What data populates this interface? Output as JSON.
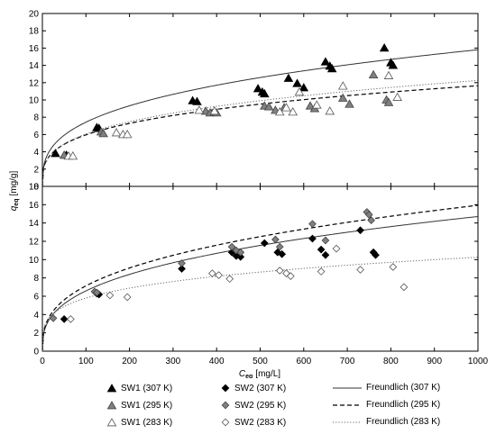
{
  "chart_data": {
    "type": "scatter",
    "x_axis": {
      "label_main": "C",
      "label_sub": "eq",
      "label_unit": "[mg/L]",
      "range": [
        0,
        1000
      ],
      "ticks": [
        "0",
        "100",
        "200",
        "300",
        "400",
        "500",
        "600",
        "700",
        "800",
        "900",
        "1000"
      ]
    },
    "y_axis": {
      "label_main": "q",
      "label_sub": "eq",
      "label_unit": "[mg/g]"
    },
    "panels": [
      {
        "position": "top",
        "ylim": [
          0,
          20
        ],
        "y_ticks": [
          "0",
          "2",
          "4",
          "6",
          "8",
          "10",
          "12",
          "14",
          "16",
          "18",
          "20"
        ],
        "series": [
          {
            "name": "SW1 (307 K)",
            "marker": "triangle",
            "fill": "#000000",
            "points": [
              [
                30,
                3.8
              ],
              [
                55,
                3.6
              ],
              [
                125,
                6.8
              ],
              [
                130,
                6.7
              ],
              [
                345,
                9.9
              ],
              [
                355,
                9.8
              ],
              [
                495,
                11.3
              ],
              [
                505,
                10.9
              ],
              [
                510,
                10.7
              ],
              [
                565,
                12.5
              ],
              [
                585,
                11.9
              ],
              [
                600,
                11.4
              ],
              [
                650,
                14.4
              ],
              [
                660,
                13.9
              ],
              [
                665,
                13.6
              ],
              [
                785,
                16.0
              ],
              [
                800,
                14.3
              ],
              [
                805,
                14.0
              ]
            ]
          },
          {
            "name": "SW1 (295 K)",
            "marker": "triangle",
            "fill": "#808080",
            "points": [
              [
                50,
                3.6
              ],
              [
                135,
                6.3
              ],
              [
                140,
                6.1
              ],
              [
                375,
                8.7
              ],
              [
                385,
                8.5
              ],
              [
                395,
                8.6
              ],
              [
                400,
                8.5
              ],
              [
                510,
                9.3
              ],
              [
                520,
                9.2
              ],
              [
                535,
                8.8
              ],
              [
                555,
                9.1
              ],
              [
                615,
                9.3
              ],
              [
                625,
                9.0
              ],
              [
                690,
                10.2
              ],
              [
                705,
                9.5
              ],
              [
                760,
                12.9
              ],
              [
                790,
                10.0
              ],
              [
                795,
                9.7
              ]
            ]
          },
          {
            "name": "SW1 (283 K)",
            "marker": "triangle",
            "fill": "#ffffff",
            "points": [
              [
                60,
                3.5
              ],
              [
                70,
                3.5
              ],
              [
                170,
                6.2
              ],
              [
                185,
                6.0
              ],
              [
                195,
                6.0
              ],
              [
                360,
                8.8
              ],
              [
                395,
                8.7
              ],
              [
                545,
                8.6
              ],
              [
                560,
                9.1
              ],
              [
                575,
                8.6
              ],
              [
                590,
                10.9
              ],
              [
                630,
                9.4
              ],
              [
                660,
                8.7
              ],
              [
                690,
                11.6
              ],
              [
                795,
                12.8
              ],
              [
                815,
                10.3
              ]
            ]
          }
        ],
        "fits": [
          {
            "name": "Freundlich (307 K)",
            "style": "solid",
            "K": 1.64,
            "n": 0.328
          },
          {
            "name": "Freundlich (295 K)",
            "style": "dashed",
            "K": 1.56,
            "n": 0.291
          },
          {
            "name": "Freundlich (283 K)",
            "style": "dotted",
            "K": 1.48,
            "n": 0.306
          }
        ]
      },
      {
        "position": "bottom",
        "ylim": [
          0,
          18
        ],
        "y_ticks": [
          "0",
          "2",
          "4",
          "6",
          "8",
          "10",
          "12",
          "14",
          "16",
          "18"
        ],
        "series": [
          {
            "name": "SW2 (307 K)",
            "marker": "diamond",
            "fill": "#000000",
            "points": [
              [
                50,
                3.5
              ],
              [
                125,
                6.3
              ],
              [
                130,
                6.2
              ],
              [
                320,
                9.0
              ],
              [
                435,
                10.8
              ],
              [
                445,
                10.4
              ],
              [
                455,
                10.3
              ],
              [
                510,
                11.8
              ],
              [
                540,
                10.8
              ],
              [
                550,
                10.6
              ],
              [
                620,
                12.3
              ],
              [
                640,
                11.1
              ],
              [
                650,
                10.5
              ],
              [
                730,
                13.2
              ],
              [
                760,
                10.8
              ],
              [
                765,
                10.5
              ]
            ]
          },
          {
            "name": "SW2 (295 K)",
            "marker": "diamond",
            "fill": "#808080",
            "points": [
              [
                25,
                3.6
              ],
              [
                120,
                6.5
              ],
              [
                125,
                6.4
              ],
              [
                320,
                9.6
              ],
              [
                435,
                11.4
              ],
              [
                445,
                11.0
              ],
              [
                455,
                10.8
              ],
              [
                535,
                12.2
              ],
              [
                545,
                11.4
              ],
              [
                620,
                13.9
              ],
              [
                650,
                12.1
              ],
              [
                745,
                15.2
              ],
              [
                750,
                14.9
              ],
              [
                755,
                14.3
              ]
            ]
          },
          {
            "name": "SW2 (283 K)",
            "marker": "diamond",
            "fill": "#ffffff",
            "points": [
              [
                65,
                3.5
              ],
              [
                155,
                6.1
              ],
              [
                195,
                5.9
              ],
              [
                390,
                8.5
              ],
              [
                405,
                8.3
              ],
              [
                430,
                7.9
              ],
              [
                545,
                8.8
              ],
              [
                560,
                8.5
              ],
              [
                570,
                8.2
              ],
              [
                640,
                8.7
              ],
              [
                675,
                11.2
              ],
              [
                730,
                8.9
              ],
              [
                805,
                9.2
              ],
              [
                830,
                7.0
              ]
            ]
          }
        ],
        "fits": [
          {
            "name": "Freundlich (307 K)",
            "style": "solid",
            "K": 1.32,
            "n": 0.349
          },
          {
            "name": "Freundlich (295 K)",
            "style": "dashed",
            "K": 1.43,
            "n": 0.349
          },
          {
            "name": "Freundlich (283 K)",
            "style": "dotted",
            "K": 1.85,
            "n": 0.248
          }
        ]
      }
    ],
    "legend": {
      "placement": "bottom",
      "entries": [
        {
          "label": "SW1 (307 K)",
          "marker": "triangle",
          "fill": "#000000"
        },
        {
          "label": "SW1 (295 K)",
          "marker": "triangle",
          "fill": "#808080"
        },
        {
          "label": "SW1 (283 K)",
          "marker": "triangle",
          "fill": "#ffffff"
        },
        {
          "label": "SW2 (307 K)",
          "marker": "diamond",
          "fill": "#000000"
        },
        {
          "label": "SW2 (295 K)",
          "marker": "diamond",
          "fill": "#808080"
        },
        {
          "label": "SW2 (283 K)",
          "marker": "diamond",
          "fill": "#ffffff"
        },
        {
          "label": "Freundlich (307 K)",
          "line": "solid"
        },
        {
          "label": "Freundlich (295 K)",
          "line": "dashed"
        },
        {
          "label": "Freundlich (283 K)",
          "line": "dotted"
        }
      ]
    }
  }
}
